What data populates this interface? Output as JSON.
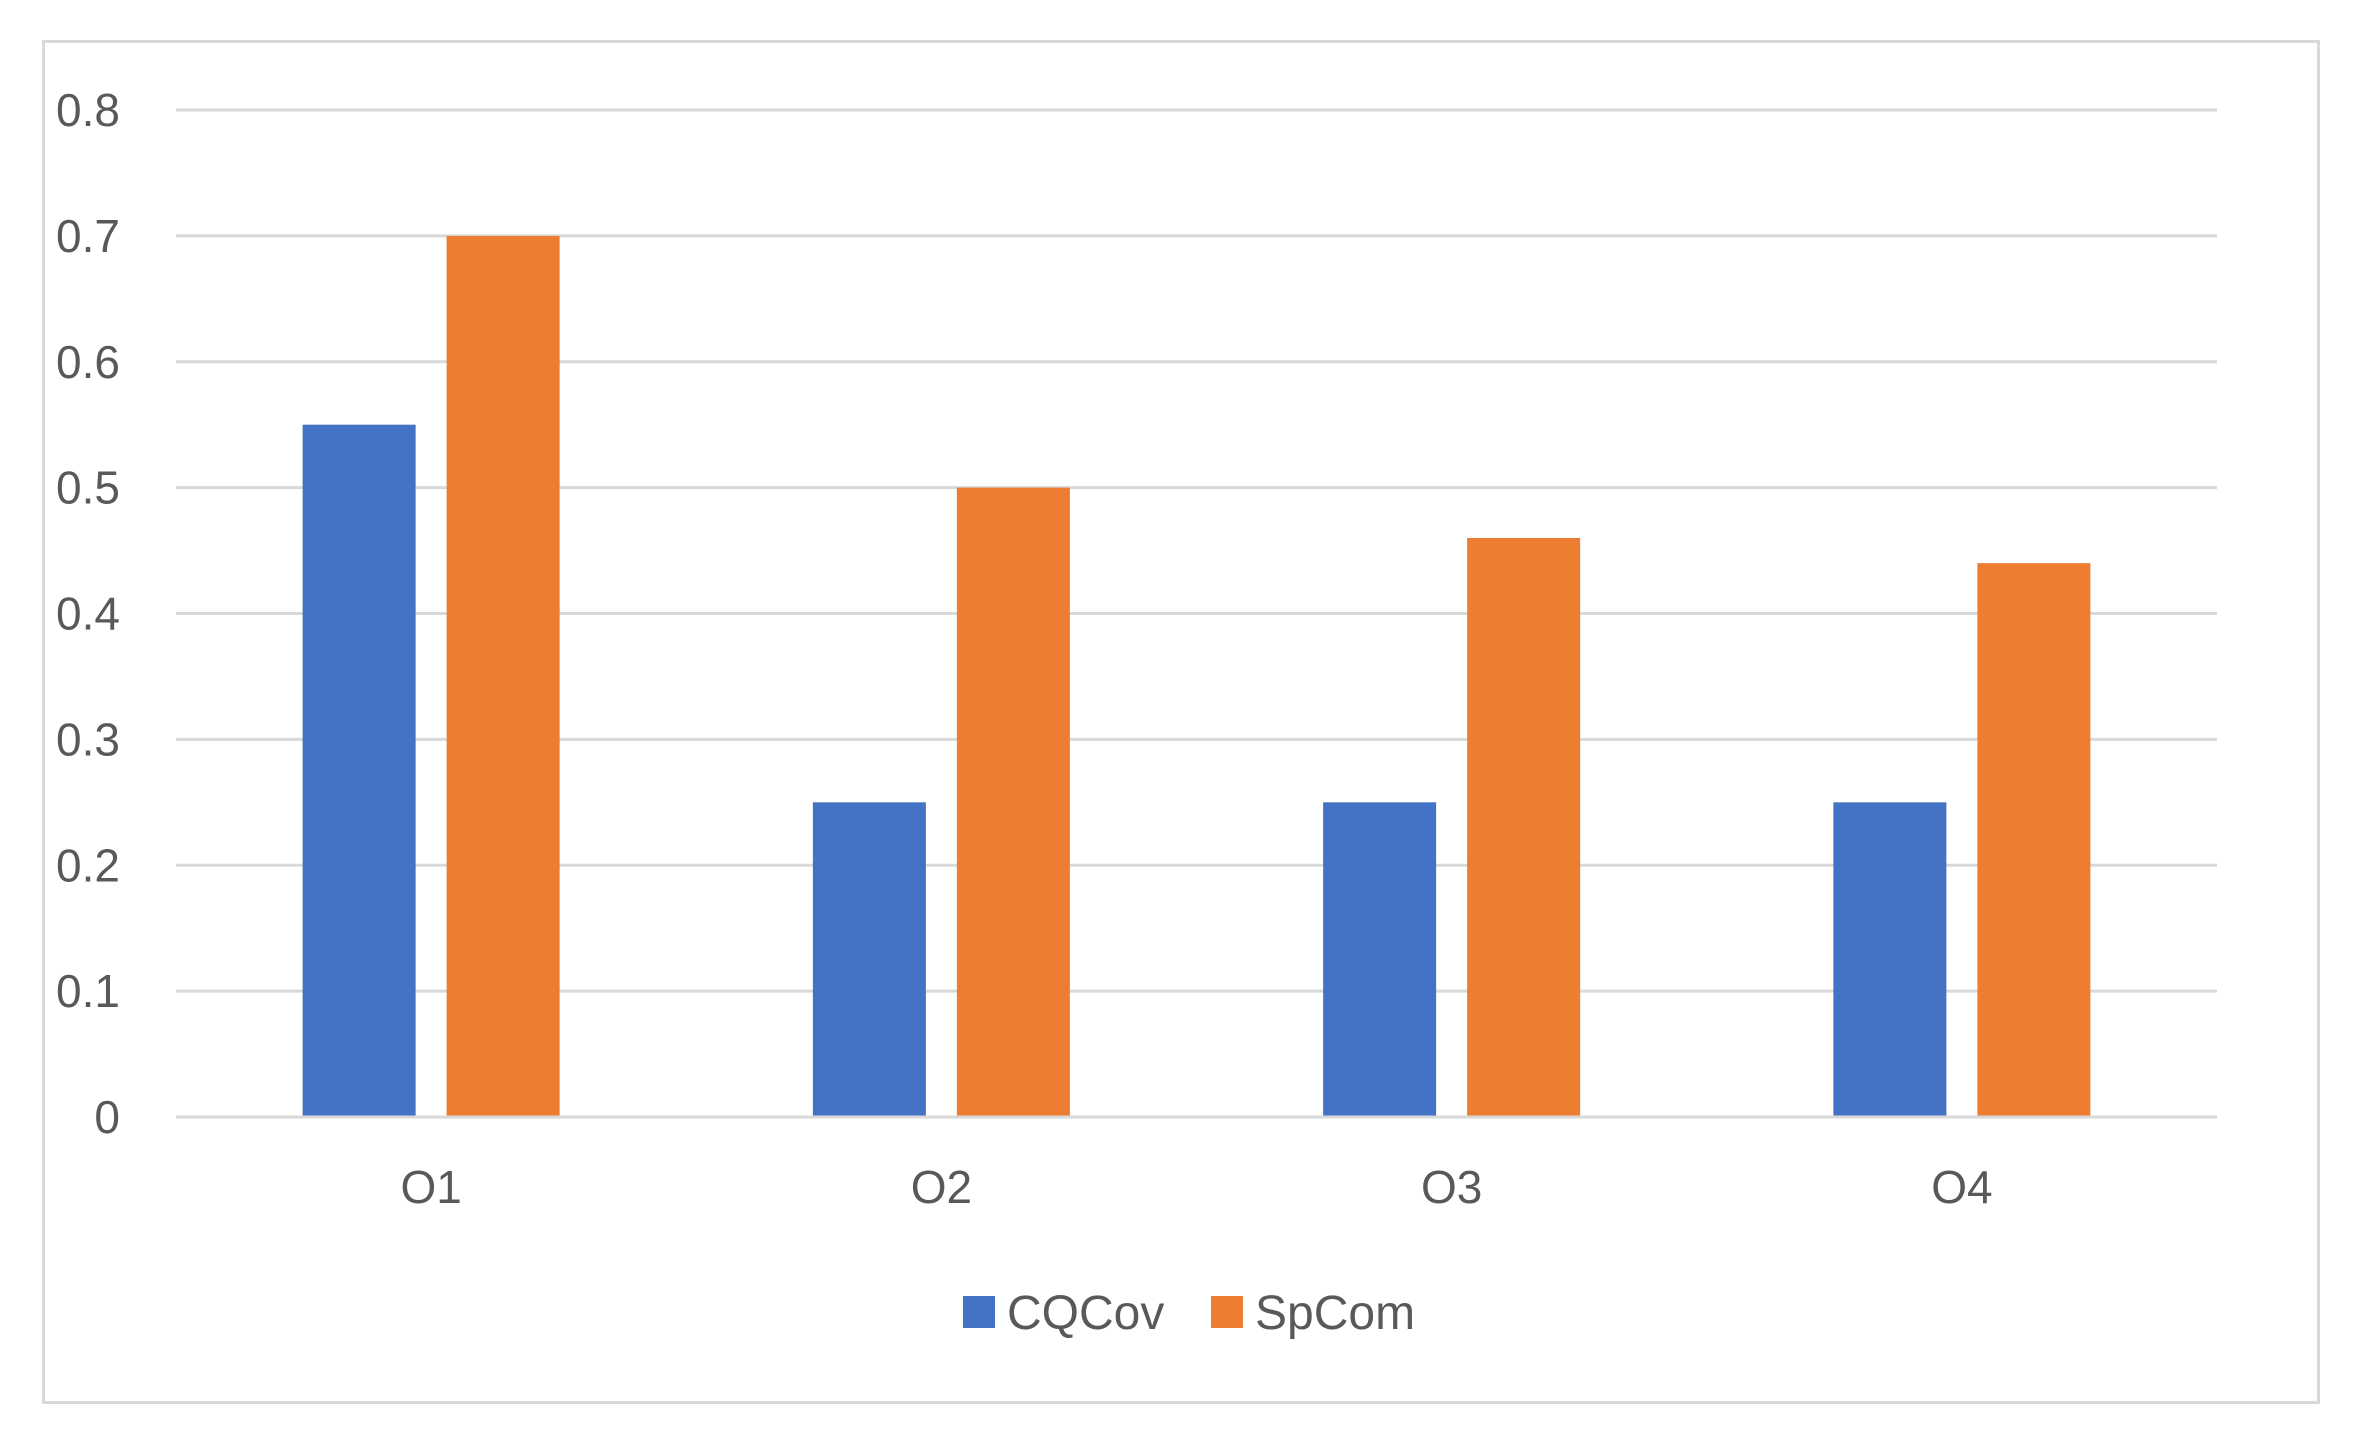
{
  "chart_data": {
    "type": "bar",
    "categories": [
      "O1",
      "O2",
      "O3",
      "O4"
    ],
    "series": [
      {
        "name": "CQCov",
        "color": "#4472c4",
        "values": [
          0.55,
          0.25,
          0.25,
          0.25
        ]
      },
      {
        "name": "SpCom",
        "color": "#ed7d31",
        "values": [
          0.7,
          0.5,
          0.46,
          0.44
        ]
      }
    ],
    "y_ticks": [
      "0",
      "0.1",
      "0.2",
      "0.3",
      "0.4",
      "0.5",
      "0.6",
      "0.7",
      "0.8"
    ],
    "ylim": [
      0,
      0.8
    ],
    "grid": true,
    "legend_position": "bottom",
    "gridline_color": "#d9d9d9",
    "text_color": "#595959"
  }
}
